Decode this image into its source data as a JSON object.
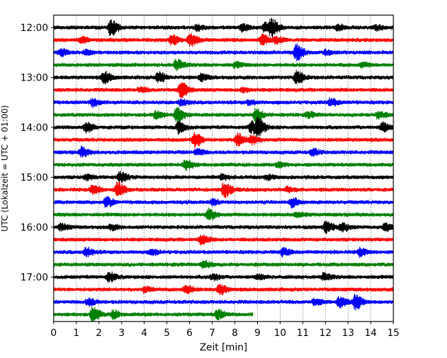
{
  "chart_data": {
    "type": "line",
    "title": "",
    "xlabel": "Zeit  [min]",
    "ylabel": "UTC (Lokalzeit = UTC + 01:00)",
    "xlim": [
      0,
      15
    ],
    "x_ticks": [
      0,
      1,
      2,
      3,
      4,
      5,
      6,
      7,
      8,
      9,
      10,
      11,
      12,
      13,
      14,
      15
    ],
    "x_tick_labels": [
      "0",
      "1",
      "2",
      "3",
      "4",
      "5",
      "6",
      "7",
      "8",
      "9",
      "10",
      "11",
      "12",
      "13",
      "14",
      "15"
    ],
    "y_tick_labels": [
      "12:00",
      "13:00",
      "14:00",
      "15:00",
      "16:00",
      "17:00"
    ],
    "y_tick_rows": [
      0,
      4,
      8,
      12,
      16,
      20
    ],
    "grid": "vertical dotted at each minute",
    "row_minutes": 15,
    "colors": [
      "#000000",
      "#ff0000",
      "#0000ff",
      "#008000"
    ],
    "traces": [
      {
        "start": "12:00",
        "color": "#000000",
        "end_min": 15,
        "bursts": [
          {
            "t": 2.5,
            "a": 2.6
          },
          {
            "t": 6.3,
            "a": 1.0
          },
          {
            "t": 8.3,
            "a": 1.2
          },
          {
            "t": 9.3,
            "a": 1.5
          },
          {
            "t": 9.6,
            "a": 2.6
          },
          {
            "t": 12.5,
            "a": 1.0
          },
          {
            "t": 14.2,
            "a": 0.8
          }
        ]
      },
      {
        "start": "12:15",
        "color": "#ff0000",
        "end_min": 15,
        "bursts": [
          {
            "t": 1.2,
            "a": 0.9
          },
          {
            "t": 5.2,
            "a": 1.6
          },
          {
            "t": 6.0,
            "a": 2.0
          },
          {
            "t": 9.2,
            "a": 1.7
          },
          {
            "t": 9.8,
            "a": 1.0
          }
        ]
      },
      {
        "start": "12:30",
        "color": "#0000ff",
        "end_min": 15,
        "bursts": [
          {
            "t": 0.3,
            "a": 1.0
          },
          {
            "t": 1.4,
            "a": 0.8
          },
          {
            "t": 10.7,
            "a": 2.6
          },
          {
            "t": 12.0,
            "a": 0.7
          }
        ]
      },
      {
        "start": "12:45",
        "color": "#008000",
        "end_min": 15,
        "bursts": [
          {
            "t": 5.4,
            "a": 1.8
          },
          {
            "t": 8.0,
            "a": 0.8
          },
          {
            "t": 13.6,
            "a": 0.7
          }
        ]
      },
      {
        "start": "13:00",
        "color": "#000000",
        "end_min": 15,
        "bursts": [
          {
            "t": 2.2,
            "a": 1.9
          },
          {
            "t": 4.6,
            "a": 1.7
          },
          {
            "t": 6.5,
            "a": 1.0
          },
          {
            "t": 10.7,
            "a": 2.2
          }
        ]
      },
      {
        "start": "13:15",
        "color": "#ff0000",
        "end_min": 15,
        "bursts": [
          {
            "t": 3.8,
            "a": 0.7
          },
          {
            "t": 5.6,
            "a": 2.5
          },
          {
            "t": 8.3,
            "a": 0.7
          }
        ]
      },
      {
        "start": "13:30",
        "color": "#0000ff",
        "end_min": 15,
        "bursts": [
          {
            "t": 1.7,
            "a": 1.2
          },
          {
            "t": 5.6,
            "a": 1.0
          },
          {
            "t": 8.6,
            "a": 0.7
          },
          {
            "t": 12.2,
            "a": 1.1
          }
        ]
      },
      {
        "start": "13:45",
        "color": "#008000",
        "end_min": 15,
        "bursts": [
          {
            "t": 4.5,
            "a": 1.3
          },
          {
            "t": 5.4,
            "a": 2.4
          },
          {
            "t": 8.9,
            "a": 2.0
          },
          {
            "t": 11.2,
            "a": 0.8
          },
          {
            "t": 14.3,
            "a": 1.1
          }
        ]
      },
      {
        "start": "14:00",
        "color": "#000000",
        "end_min": 15,
        "bursts": [
          {
            "t": 1.4,
            "a": 1.6
          },
          {
            "t": 5.5,
            "a": 2.0
          },
          {
            "t": 8.7,
            "a": 1.8
          },
          {
            "t": 9.0,
            "a": 2.6
          },
          {
            "t": 14.5,
            "a": 1.4
          }
        ]
      },
      {
        "start": "14:15",
        "color": "#ff0000",
        "end_min": 15,
        "bursts": [
          {
            "t": 6.2,
            "a": 2.4
          },
          {
            "t": 8.1,
            "a": 2.0
          },
          {
            "t": 8.7,
            "a": 1.4
          }
        ]
      },
      {
        "start": "14:30",
        "color": "#0000ff",
        "end_min": 15,
        "bursts": [
          {
            "t": 1.2,
            "a": 1.5
          },
          {
            "t": 6.3,
            "a": 1.0
          },
          {
            "t": 11.4,
            "a": 1.0
          }
        ]
      },
      {
        "start": "14:45",
        "color": "#008000",
        "end_min": 15,
        "bursts": [
          {
            "t": 5.8,
            "a": 1.8
          },
          {
            "t": 9.9,
            "a": 0.7
          }
        ]
      },
      {
        "start": "15:00",
        "color": "#000000",
        "end_min": 15,
        "bursts": [
          {
            "t": 1.4,
            "a": 0.9
          },
          {
            "t": 2.9,
            "a": 1.8
          },
          {
            "t": 7.4,
            "a": 0.8
          },
          {
            "t": 9.4,
            "a": 0.7
          }
        ]
      },
      {
        "start": "15:15",
        "color": "#ff0000",
        "end_min": 15,
        "bursts": [
          {
            "t": 1.7,
            "a": 1.6
          },
          {
            "t": 2.8,
            "a": 2.3
          },
          {
            "t": 7.5,
            "a": 2.4
          },
          {
            "t": 10.3,
            "a": 0.7
          }
        ]
      },
      {
        "start": "15:30",
        "color": "#0000ff",
        "end_min": 15,
        "bursts": [
          {
            "t": 2.3,
            "a": 1.5
          },
          {
            "t": 7.0,
            "a": 0.8
          },
          {
            "t": 10.5,
            "a": 1.5
          }
        ]
      },
      {
        "start": "15:45",
        "color": "#008000",
        "end_min": 15,
        "bursts": [
          {
            "t": 6.8,
            "a": 1.8
          },
          {
            "t": 10.7,
            "a": 0.7
          }
        ]
      },
      {
        "start": "16:00",
        "color": "#000000",
        "end_min": 15,
        "bursts": [
          {
            "t": 0.3,
            "a": 1.0
          },
          {
            "t": 2.5,
            "a": 0.8
          },
          {
            "t": 12.0,
            "a": 1.9
          },
          {
            "t": 12.7,
            "a": 1.4
          },
          {
            "t": 14.6,
            "a": 1.1
          }
        ]
      },
      {
        "start": "16:15",
        "color": "#ff0000",
        "end_min": 15,
        "bursts": [
          {
            "t": 6.5,
            "a": 1.4
          }
        ]
      },
      {
        "start": "16:30",
        "color": "#0000ff",
        "end_min": 15,
        "bursts": [
          {
            "t": 1.4,
            "a": 1.4
          },
          {
            "t": 4.3,
            "a": 0.9
          },
          {
            "t": 10.1,
            "a": 1.2
          },
          {
            "t": 13.5,
            "a": 1.3
          }
        ]
      },
      {
        "start": "16:45",
        "color": "#008000",
        "end_min": 15,
        "bursts": [
          {
            "t": 6.6,
            "a": 1.2
          }
        ]
      },
      {
        "start": "17:00",
        "color": "#000000",
        "end_min": 15,
        "bursts": [
          {
            "t": 2.4,
            "a": 1.5
          },
          {
            "t": 7.0,
            "a": 1.0
          },
          {
            "t": 9.0,
            "a": 0.8
          },
          {
            "t": 11.9,
            "a": 1.2
          }
        ]
      },
      {
        "start": "17:15",
        "color": "#ff0000",
        "end_min": 15,
        "bursts": [
          {
            "t": 4.0,
            "a": 0.8
          },
          {
            "t": 5.8,
            "a": 1.4
          },
          {
            "t": 7.3,
            "a": 1.6
          }
        ]
      },
      {
        "start": "17:30",
        "color": "#0000ff",
        "end_min": 15,
        "bursts": [
          {
            "t": 1.5,
            "a": 1.1
          },
          {
            "t": 11.5,
            "a": 1.0
          },
          {
            "t": 12.6,
            "a": 1.7
          },
          {
            "t": 13.3,
            "a": 2.4
          }
        ]
      },
      {
        "start": "17:45",
        "color": "#008000",
        "end_min": 8.8,
        "bursts": [
          {
            "t": 1.7,
            "a": 2.2
          },
          {
            "t": 2.6,
            "a": 1.2
          },
          {
            "t": 7.2,
            "a": 1.5
          }
        ]
      }
    ]
  }
}
